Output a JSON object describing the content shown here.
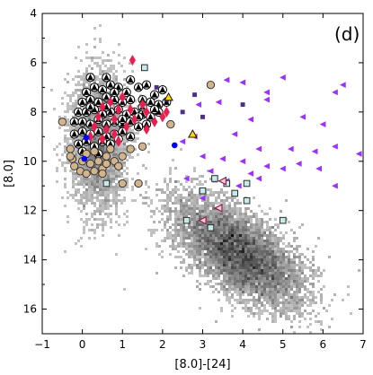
{
  "chart_data": {
    "type": "scatter",
    "panel_label": "(d)",
    "xlabel": "[8.0]-[24]",
    "ylabel": "[8.0]",
    "xlim": [
      -1,
      7
    ],
    "ylim": [
      17,
      4
    ],
    "y_inverted": true,
    "grid": false,
    "xticks": [
      -1,
      0,
      1,
      2,
      3,
      4,
      5,
      6,
      7
    ],
    "yticks": [
      4,
      6,
      8,
      10,
      12,
      14,
      16
    ],
    "density_background": {
      "description_color": "#7a7a7a",
      "clusters": [
        {
          "cx": 3.9,
          "cy": 13.7,
          "sx": 0.75,
          "sy": 1.0,
          "tilt": 0.5,
          "weight": 1.0
        },
        {
          "cx": 0.4,
          "cy": 9.2,
          "sx": 0.35,
          "sy": 1.4,
          "tilt": 0.0,
          "weight": 0.35
        }
      ]
    },
    "series": [
      {
        "marker": "triangle-circle",
        "color": "#000000",
        "edge": "#000000",
        "points": [
          [
            0.1,
            7.2
          ],
          [
            0.3,
            7.0
          ],
          [
            0.5,
            7.1
          ],
          [
            0.7,
            6.9
          ],
          [
            0.9,
            7.0
          ],
          [
            1.1,
            7.2
          ],
          [
            1.4,
            7.0
          ],
          [
            1.6,
            6.9
          ],
          [
            1.8,
            7.3
          ],
          [
            2.0,
            7.1
          ],
          [
            0.0,
            7.6
          ],
          [
            0.2,
            7.5
          ],
          [
            0.4,
            7.6
          ],
          [
            0.6,
            7.4
          ],
          [
            0.8,
            7.5
          ],
          [
            1.0,
            7.6
          ],
          [
            1.2,
            7.5
          ],
          [
            1.5,
            7.5
          ],
          [
            1.7,
            7.6
          ],
          [
            1.9,
            7.7
          ],
          [
            -0.1,
            8.0
          ],
          [
            0.1,
            8.0
          ],
          [
            0.3,
            7.9
          ],
          [
            0.5,
            8.1
          ],
          [
            0.7,
            8.0
          ],
          [
            0.9,
            7.9
          ],
          [
            1.1,
            8.1
          ],
          [
            1.3,
            8.0
          ],
          [
            1.5,
            8.1
          ],
          [
            1.7,
            8.2
          ],
          [
            1.9,
            8.0
          ],
          [
            -0.2,
            8.4
          ],
          [
            0.0,
            8.4
          ],
          [
            0.2,
            8.5
          ],
          [
            0.4,
            8.3
          ],
          [
            0.6,
            8.5
          ],
          [
            0.8,
            8.4
          ],
          [
            1.0,
            8.5
          ],
          [
            1.2,
            8.4
          ],
          [
            1.4,
            8.6
          ],
          [
            1.6,
            8.5
          ],
          [
            -0.2,
            8.9
          ],
          [
            0.0,
            8.8
          ],
          [
            0.2,
            8.9
          ],
          [
            0.4,
            8.8
          ],
          [
            0.6,
            9.0
          ],
          [
            0.8,
            8.9
          ],
          [
            1.0,
            8.8
          ],
          [
            1.2,
            9.0
          ],
          [
            -0.1,
            9.3
          ],
          [
            0.1,
            9.2
          ],
          [
            0.3,
            9.4
          ],
          [
            0.5,
            9.2
          ],
          [
            0.7,
            9.3
          ],
          [
            0.9,
            9.1
          ],
          [
            0.2,
            7.8
          ],
          [
            0.6,
            7.8
          ],
          [
            1.0,
            8.3
          ],
          [
            1.4,
            8.2
          ],
          [
            0.4,
            9.7
          ],
          [
            0.0,
            9.6
          ],
          [
            0.8,
            7.2
          ],
          [
            1.2,
            6.7
          ],
          [
            0.6,
            6.6
          ],
          [
            0.2,
            6.6
          ],
          [
            1.5,
            7.8
          ],
          [
            1.8,
            7.9
          ],
          [
            2.1,
            7.6
          ]
        ]
      },
      {
        "marker": "diamond",
        "color": "#e8204f",
        "edge": "#e8204f",
        "points": [
          [
            1.25,
            5.9
          ],
          [
            1.0,
            7.4
          ],
          [
            0.7,
            7.6
          ],
          [
            0.5,
            7.8
          ],
          [
            0.9,
            7.9
          ],
          [
            1.2,
            7.9
          ],
          [
            1.5,
            7.7
          ],
          [
            1.6,
            8.0
          ],
          [
            2.0,
            8.2
          ],
          [
            0.4,
            8.2
          ],
          [
            0.8,
            8.3
          ],
          [
            1.3,
            8.3
          ],
          [
            1.8,
            8.4
          ],
          [
            0.3,
            8.6
          ],
          [
            0.6,
            8.7
          ],
          [
            1.1,
            8.6
          ],
          [
            1.6,
            8.7
          ],
          [
            0.2,
            9.0
          ],
          [
            0.5,
            9.1
          ],
          [
            0.9,
            9.2
          ],
          [
            0.8,
            8.9
          ],
          [
            2.1,
            8.0
          ]
        ]
      },
      {
        "marker": "circle",
        "color": "#d2b48c",
        "edge": "#2b2b2b",
        "points": [
          [
            -0.5,
            8.4
          ],
          [
            -0.3,
            9.5
          ],
          [
            -0.25,
            9.9
          ],
          [
            -0.2,
            10.2
          ],
          [
            -0.05,
            10.4
          ],
          [
            0.1,
            10.5
          ],
          [
            0.3,
            10.4
          ],
          [
            0.5,
            10.3
          ],
          [
            -0.3,
            9.8
          ],
          [
            0.0,
            10.0
          ],
          [
            0.2,
            10.1
          ],
          [
            0.4,
            10.0
          ],
          [
            0.6,
            10.1
          ],
          [
            0.8,
            10.0
          ],
          [
            1.0,
            9.8
          ],
          [
            1.2,
            9.5
          ],
          [
            1.5,
            9.4
          ],
          [
            0.1,
            9.7
          ],
          [
            0.3,
            9.6
          ],
          [
            0.7,
            9.5
          ],
          [
            0.6,
            9.8
          ],
          [
            0.9,
            10.2
          ],
          [
            1.0,
            10.9
          ],
          [
            1.4,
            10.9
          ],
          [
            3.2,
            6.9
          ],
          [
            2.2,
            8.5
          ],
          [
            0.5,
            10.5
          ]
        ]
      },
      {
        "marker": "triangle-left",
        "color": "#9b30ff",
        "edge": "#9b30ff",
        "points": [
          [
            3.6,
            6.7
          ],
          [
            4.0,
            6.8
          ],
          [
            5.0,
            6.6
          ],
          [
            6.5,
            6.9
          ],
          [
            4.6,
            7.2
          ],
          [
            6.3,
            7.2
          ],
          [
            3.4,
            7.6
          ],
          [
            4.6,
            7.5
          ],
          [
            2.9,
            7.7
          ],
          [
            4.2,
            8.3
          ],
          [
            5.5,
            8.2
          ],
          [
            6.0,
            8.5
          ],
          [
            3.8,
            8.9
          ],
          [
            2.5,
            9.2
          ],
          [
            4.4,
            9.5
          ],
          [
            5.2,
            9.5
          ],
          [
            5.8,
            9.6
          ],
          [
            6.3,
            9.4
          ],
          [
            3.0,
            9.8
          ],
          [
            3.5,
            9.9
          ],
          [
            4.0,
            10.0
          ],
          [
            4.6,
            10.2
          ],
          [
            5.4,
            10.1
          ],
          [
            3.2,
            10.4
          ],
          [
            4.2,
            10.5
          ],
          [
            5.0,
            10.3
          ],
          [
            5.9,
            10.3
          ],
          [
            2.6,
            10.7
          ],
          [
            3.6,
            10.8
          ],
          [
            4.4,
            10.7
          ],
          [
            6.3,
            11.0
          ],
          [
            3.0,
            11.5
          ],
          [
            2.8,
            9.0
          ],
          [
            6.9,
            9.7
          ],
          [
            3.9,
            11.0
          ]
        ]
      },
      {
        "marker": "square",
        "color": "#4b2f8a",
        "edge": "#4b2f8a",
        "points": [
          [
            1.85,
            7.0
          ],
          [
            2.1,
            7.5
          ],
          [
            2.5,
            8.0
          ],
          [
            3.0,
            8.2
          ],
          [
            4.0,
            7.7
          ],
          [
            2.8,
            7.3
          ]
        ]
      },
      {
        "marker": "square-open",
        "color": "#c6ebeb",
        "edge": "#2b2b2b",
        "points": [
          [
            1.55,
            6.2
          ],
          [
            0.6,
            10.9
          ],
          [
            3.0,
            11.2
          ],
          [
            3.3,
            10.7
          ],
          [
            3.6,
            10.9
          ],
          [
            4.1,
            10.9
          ],
          [
            3.8,
            11.3
          ],
          [
            4.1,
            11.6
          ],
          [
            2.6,
            12.4
          ],
          [
            3.2,
            12.7
          ],
          [
            5.0,
            12.4
          ]
        ]
      },
      {
        "marker": "triangle-left-open",
        "color": "#f5cccc",
        "edge": "#8b2252",
        "points": [
          [
            3.4,
            11.9
          ],
          [
            3.0,
            12.4
          ],
          [
            3.5,
            10.8
          ]
        ]
      },
      {
        "marker": "triangle-up",
        "color": "#ffd700",
        "edge": "#000000",
        "points": [
          [
            2.15,
            7.4
          ],
          [
            2.75,
            8.9
          ]
        ]
      },
      {
        "marker": "circle-small",
        "color": "#0000ff",
        "edge": "#0000ff",
        "points": [
          [
            0.1,
            9.05
          ],
          [
            0.05,
            9.9
          ],
          [
            2.3,
            9.35
          ]
        ]
      }
    ]
  }
}
